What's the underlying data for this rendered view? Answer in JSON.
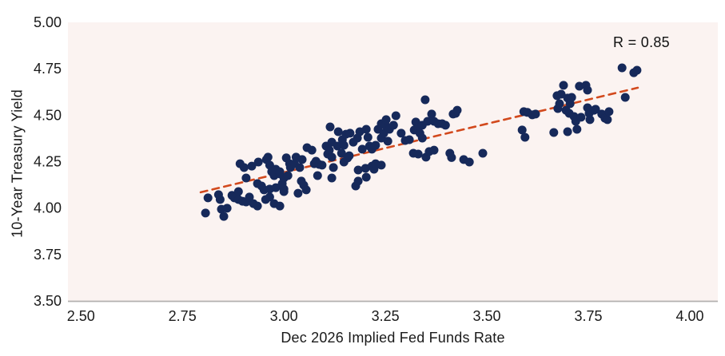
{
  "colors": {
    "point": "#16295a",
    "trend": "#d2491d",
    "plot_bg": "#fbf3f1",
    "page_bg": "#ffffff",
    "axis_line": "#b3b0af",
    "text": "#1a1a1a"
  },
  "chart_data": {
    "type": "scatter",
    "title": "",
    "xlabel": "Dec 2026 Implied Fed Funds Rate",
    "ylabel": "10-Year Treasury Yield",
    "xlim": [
      2.468,
      4.069
    ],
    "ylim": [
      3.5,
      5.0
    ],
    "xticks": [
      2.5,
      2.75,
      3.0,
      3.25,
      3.5,
      3.75,
      4.0
    ],
    "yticks": [
      3.5,
      3.75,
      4.0,
      4.25,
      4.5,
      4.75,
      5.0
    ],
    "grid": false,
    "legend": "none",
    "annotation": {
      "text": "R = 0.85",
      "position": "top-right"
    },
    "trendline": {
      "x1": 2.795,
      "y1": 4.085,
      "x2": 3.872,
      "y2": 4.648,
      "dashed": true
    },
    "points": [
      [
        2.813,
        4.055
      ],
      [
        2.807,
        3.973
      ],
      [
        2.839,
        4.072
      ],
      [
        2.843,
        4.046
      ],
      [
        2.846,
        3.994
      ],
      [
        2.852,
        3.955
      ],
      [
        2.86,
        3.999
      ],
      [
        2.872,
        4.068
      ],
      [
        2.878,
        4.055
      ],
      [
        2.888,
        4.046
      ],
      [
        2.898,
        4.037
      ],
      [
        2.907,
        4.033
      ],
      [
        2.915,
        4.059
      ],
      [
        2.925,
        4.024
      ],
      [
        2.935,
        4.011
      ],
      [
        2.888,
        4.089
      ],
      [
        2.892,
        4.239
      ],
      [
        2.902,
        4.218
      ],
      [
        2.921,
        4.226
      ],
      [
        2.937,
        4.248
      ],
      [
        2.957,
        4.261
      ],
      [
        2.965,
        4.231
      ],
      [
        2.97,
        4.196
      ],
      [
        2.976,
        4.175
      ],
      [
        2.99,
        4.184
      ],
      [
        3.0,
        4.162
      ],
      [
        2.907,
        4.162
      ],
      [
        2.935,
        4.132
      ],
      [
        2.945,
        4.119
      ],
      [
        2.951,
        4.098
      ],
      [
        2.965,
        4.059
      ],
      [
        2.976,
        4.024
      ],
      [
        2.99,
        4.011
      ],
      [
        2.965,
        4.102
      ],
      [
        2.98,
        4.11
      ],
      [
        3.0,
        4.102
      ],
      [
        2.955,
        4.046
      ],
      [
        2.961,
        4.274
      ],
      [
        3.006,
        4.27
      ],
      [
        3.014,
        4.239
      ],
      [
        3.03,
        4.274
      ],
      [
        3.045,
        4.261
      ],
      [
        3.035,
        4.08
      ],
      [
        3.055,
        4.098
      ],
      [
        2.98,
        4.209
      ],
      [
        2.99,
        4.196
      ],
      [
        2.996,
        4.132
      ],
      [
        3.0,
        4.089
      ],
      [
        3.01,
        4.175
      ],
      [
        3.016,
        4.218
      ],
      [
        3.026,
        4.239
      ],
      [
        3.039,
        4.218
      ],
      [
        3.043,
        4.145
      ],
      [
        3.049,
        4.123
      ],
      [
        3.057,
        4.325
      ],
      [
        3.069,
        4.312
      ],
      [
        3.075,
        4.239
      ],
      [
        3.079,
        4.252
      ],
      [
        3.083,
        4.175
      ],
      [
        3.087,
        4.235
      ],
      [
        3.094,
        4.231
      ],
      [
        3.104,
        4.334
      ],
      [
        3.108,
        4.291
      ],
      [
        3.112,
        4.312
      ],
      [
        3.114,
        4.437
      ],
      [
        3.118,
        4.355
      ],
      [
        3.118,
        4.274
      ],
      [
        3.122,
        4.218
      ],
      [
        3.118,
        4.162
      ],
      [
        3.132,
        4.334
      ],
      [
        3.134,
        4.411
      ],
      [
        3.142,
        4.295
      ],
      [
        3.144,
        4.368
      ],
      [
        3.148,
        4.338
      ],
      [
        3.148,
        4.248
      ],
      [
        3.153,
        4.398
      ],
      [
        3.157,
        4.27
      ],
      [
        3.161,
        4.282
      ],
      [
        3.163,
        4.403
      ],
      [
        3.171,
        4.355
      ],
      [
        3.177,
        4.119
      ],
      [
        3.181,
        4.377
      ],
      [
        3.183,
        4.145
      ],
      [
        3.183,
        4.205
      ],
      [
        3.187,
        4.411
      ],
      [
        3.193,
        4.317
      ],
      [
        3.201,
        4.214
      ],
      [
        3.203,
        4.424
      ],
      [
        3.203,
        4.166
      ],
      [
        3.207,
        4.381
      ],
      [
        3.211,
        4.334
      ],
      [
        3.217,
        4.317
      ],
      [
        3.217,
        4.226
      ],
      [
        3.222,
        4.209
      ],
      [
        3.226,
        4.338
      ],
      [
        3.226,
        4.239
      ],
      [
        3.24,
        4.231
      ],
      [
        3.232,
        4.424
      ],
      [
        3.24,
        4.454
      ],
      [
        3.24,
        4.377
      ],
      [
        3.246,
        4.403
      ],
      [
        3.25,
        4.446
      ],
      [
        3.252,
        4.476
      ],
      [
        3.256,
        4.36
      ],
      [
        3.26,
        4.424
      ],
      [
        3.27,
        4.446
      ],
      [
        3.276,
        4.497
      ],
      [
        3.289,
        4.403
      ],
      [
        3.299,
        4.364
      ],
      [
        3.309,
        4.368
      ],
      [
        3.319,
        4.295
      ],
      [
        3.321,
        4.42
      ],
      [
        3.325,
        4.463
      ],
      [
        3.331,
        4.433
      ],
      [
        3.331,
        4.291
      ],
      [
        3.335,
        4.403
      ],
      [
        3.341,
        4.446
      ],
      [
        3.341,
        4.377
      ],
      [
        3.348,
        4.583
      ],
      [
        3.35,
        4.274
      ],
      [
        3.354,
        4.467
      ],
      [
        3.358,
        4.304
      ],
      [
        3.364,
        4.506
      ],
      [
        3.37,
        4.467
      ],
      [
        3.37,
        4.312
      ],
      [
        3.38,
        4.454
      ],
      [
        3.39,
        4.454
      ],
      [
        3.398,
        4.446
      ],
      [
        3.409,
        4.295
      ],
      [
        3.413,
        4.272
      ],
      [
        3.417,
        4.506
      ],
      [
        3.423,
        4.51
      ],
      [
        3.427,
        4.527
      ],
      [
        3.443,
        4.261
      ],
      [
        3.457,
        4.248
      ],
      [
        3.49,
        4.295
      ],
      [
        3.587,
        4.42
      ],
      [
        3.591,
        4.519
      ],
      [
        3.6,
        4.515
      ],
      [
        3.612,
        4.502
      ],
      [
        3.62,
        4.506
      ],
      [
        3.594,
        4.381
      ],
      [
        3.665,
        4.407
      ],
      [
        3.673,
        4.605
      ],
      [
        3.675,
        4.536
      ],
      [
        3.679,
        4.562
      ],
      [
        3.683,
        4.613
      ],
      [
        3.689,
        4.661
      ],
      [
        3.695,
        4.527
      ],
      [
        3.699,
        4.592
      ],
      [
        3.699,
        4.411
      ],
      [
        3.705,
        4.562
      ],
      [
        3.709,
        4.596
      ],
      [
        3.703,
        4.51
      ],
      [
        3.715,
        4.493
      ],
      [
        3.719,
        4.467
      ],
      [
        3.722,
        4.424
      ],
      [
        3.728,
        4.656
      ],
      [
        3.732,
        4.489
      ],
      [
        3.744,
        4.661
      ],
      [
        3.748,
        4.635
      ],
      [
        3.748,
        4.54
      ],
      [
        3.752,
        4.51
      ],
      [
        3.754,
        4.476
      ],
      [
        3.764,
        4.527
      ],
      [
        3.768,
        4.532
      ],
      [
        3.783,
        4.506
      ],
      [
        3.791,
        4.484
      ],
      [
        3.797,
        4.476
      ],
      [
        3.801,
        4.519
      ],
      [
        3.833,
        4.755
      ],
      [
        3.841,
        4.596
      ],
      [
        3.862,
        4.729
      ],
      [
        3.87,
        4.742
      ]
    ]
  }
}
